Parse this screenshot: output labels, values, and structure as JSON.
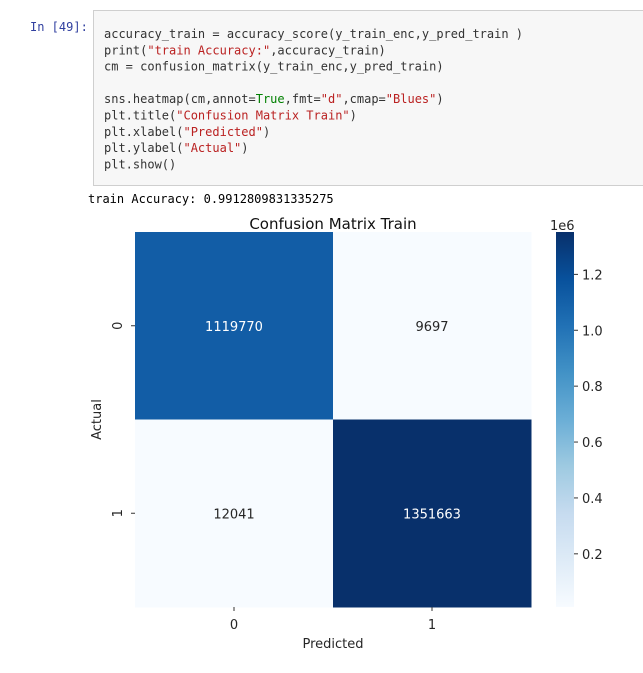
{
  "cell": {
    "prompt": "In [49]:",
    "code": [
      [
        {
          "text": "accuracy_train = accuracy_score(y_train_enc,y_pred_train )",
          "color": "#333333"
        }
      ],
      [
        {
          "text": "print(",
          "color": "#333333"
        },
        {
          "text": "\"train Accuracy:\"",
          "color": "#ba2121"
        },
        {
          "text": ",accuracy_train)",
          "color": "#333333"
        }
      ],
      [
        {
          "text": "cm = confusion_matrix(y_train_enc,y_pred_train)",
          "color": "#333333"
        }
      ],
      [],
      [
        {
          "text": "sns.heatmap(cm,annot=",
          "color": "#333333"
        },
        {
          "text": "True",
          "color": "#008000"
        },
        {
          "text": ",fmt=",
          "color": "#333333"
        },
        {
          "text": "\"d\"",
          "color": "#ba2121"
        },
        {
          "text": ",cmap=",
          "color": "#333333"
        },
        {
          "text": "\"Blues\"",
          "color": "#ba2121"
        },
        {
          "text": ")",
          "color": "#333333"
        }
      ],
      [
        {
          "text": "plt.title(",
          "color": "#333333"
        },
        {
          "text": "\"Confusion Matrix Train\"",
          "color": "#ba2121"
        },
        {
          "text": ")",
          "color": "#333333"
        }
      ],
      [
        {
          "text": "plt.xlabel(",
          "color": "#333333"
        },
        {
          "text": "\"Predicted\"",
          "color": "#ba2121"
        },
        {
          "text": ")",
          "color": "#333333"
        }
      ],
      [
        {
          "text": "plt.ylabel(",
          "color": "#333333"
        },
        {
          "text": "\"Actual\"",
          "color": "#ba2121"
        },
        {
          "text": ")",
          "color": "#333333"
        }
      ],
      [
        {
          "text": "plt.show()",
          "color": "#333333"
        }
      ]
    ],
    "output": "train Accuracy: 0.9912809831335275"
  },
  "chart_data": {
    "type": "heatmap",
    "title": "Confusion Matrix Train",
    "xlabel": "Predicted",
    "ylabel": "Actual",
    "x": [
      "0",
      "1"
    ],
    "y": [
      "0",
      "1"
    ],
    "values": [
      [
        1119770,
        9697
      ],
      [
        12041,
        1351663
      ]
    ],
    "colormap": [
      "#f7fbff",
      "#deebf7",
      "#c6dbef",
      "#9ecae1",
      "#6baed6",
      "#4292c6",
      "#2171b5",
      "#08519c",
      "#08306b"
    ],
    "clim": [
      9697,
      1351663
    ],
    "cticks": [
      {
        "value": 200000,
        "label": "0.2"
      },
      {
        "value": 400000,
        "label": "0.4"
      },
      {
        "value": 600000,
        "label": "0.6"
      },
      {
        "value": 800000,
        "label": "0.8"
      },
      {
        "value": 1000000,
        "label": "1.0"
      },
      {
        "value": 1200000,
        "label": "1.2"
      }
    ],
    "colorbar_offset": "1e6"
  }
}
